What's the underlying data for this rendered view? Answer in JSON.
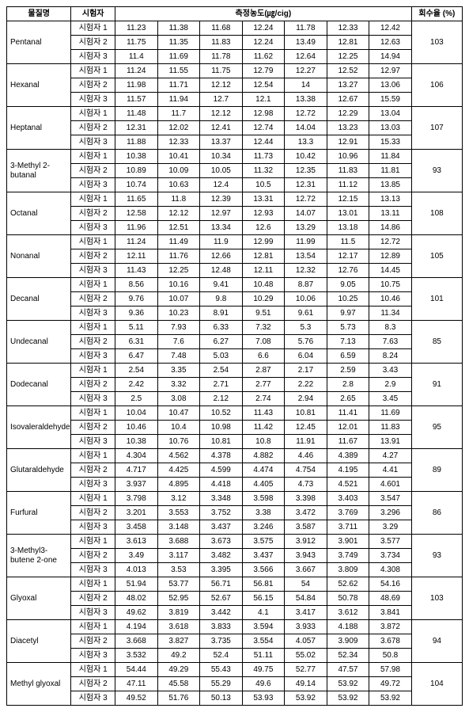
{
  "headers": {
    "name": "물질명",
    "tester": "시험자",
    "conc": "측정농도(㎍/cig)",
    "rate": "회수율 (%)"
  },
  "testerLabels": [
    "시험자 1",
    "시험자 2",
    "시험자 3"
  ],
  "substances": [
    {
      "name": "Pentanal",
      "rate": "103",
      "rows": [
        [
          "11.23",
          "11.38",
          "11.68",
          "12.24",
          "11.78",
          "12.33",
          "12.42"
        ],
        [
          "11.75",
          "11.35",
          "11.83",
          "12.24",
          "13.49",
          "12.81",
          "12.63"
        ],
        [
          "11.4",
          "11.69",
          "11.78",
          "11.62",
          "12.64",
          "12.25",
          "14.94"
        ]
      ]
    },
    {
      "name": "Hexanal",
      "rate": "106",
      "rows": [
        [
          "11.24",
          "11.55",
          "11.75",
          "12.79",
          "12.27",
          "12.52",
          "12.97"
        ],
        [
          "11.98",
          "11.71",
          "12.12",
          "12.54",
          "14",
          "13.27",
          "13.06"
        ],
        [
          "11.57",
          "11.94",
          "12.7",
          "12.1",
          "13.38",
          "12.67",
          "15.59"
        ]
      ]
    },
    {
      "name": "Heptanal",
      "rate": "107",
      "rows": [
        [
          "11.48",
          "11.7",
          "12.12",
          "12.98",
          "12.72",
          "12.29",
          "13.04"
        ],
        [
          "12.31",
          "12.02",
          "12.41",
          "12.74",
          "14.04",
          "13.23",
          "13.03"
        ],
        [
          "11.88",
          "12.33",
          "13.37",
          "12.44",
          "13.3",
          "12.91",
          "15.33"
        ]
      ]
    },
    {
      "name": "3-Methyl 2-butanal",
      "rate": "93",
      "rows": [
        [
          "10.38",
          "10.41",
          "10.34",
          "11.73",
          "10.42",
          "10.96",
          "11.84"
        ],
        [
          "10.89",
          "10.09",
          "10.05",
          "11.32",
          "12.35",
          "11.83",
          "11.81"
        ],
        [
          "10.74",
          "10.63",
          "12.4",
          "10.5",
          "12.31",
          "11.12",
          "13.85"
        ]
      ]
    },
    {
      "name": "Octanal",
      "rate": "108",
      "rows": [
        [
          "11.65",
          "11.8",
          "12.39",
          "13.31",
          "12.72",
          "12.15",
          "13.13"
        ],
        [
          "12.58",
          "12.12",
          "12.97",
          "12.93",
          "14.07",
          "13.01",
          "13.11"
        ],
        [
          "11.96",
          "12.51",
          "13.34",
          "12.6",
          "13.29",
          "13.18",
          "14.86"
        ]
      ]
    },
    {
      "name": "Nonanal",
      "rate": "105",
      "rows": [
        [
          "11.24",
          "11.49",
          "11.9",
          "12.99",
          "11.99",
          "11.5",
          "12.72"
        ],
        [
          "12.11",
          "11.76",
          "12.66",
          "12.81",
          "13.54",
          "12.17",
          "12.89"
        ],
        [
          "11.43",
          "12.25",
          "12.48",
          "12.11",
          "12.32",
          "12.76",
          "14.45"
        ]
      ]
    },
    {
      "name": "Decanal",
      "rate": "101",
      "rows": [
        [
          "8.56",
          "10.16",
          "9.41",
          "10.48",
          "8.87",
          "9.05",
          "10.75"
        ],
        [
          "9.76",
          "10.07",
          "9.8",
          "10.29",
          "10.06",
          "10.25",
          "10.46"
        ],
        [
          "9.36",
          "10.23",
          "8.91",
          "9.51",
          "9.61",
          "9.97",
          "11.34"
        ]
      ]
    },
    {
      "name": "Undecanal",
      "rate": "85",
      "rows": [
        [
          "5.11",
          "7.93",
          "6.33",
          "7.32",
          "5.3",
          "5.73",
          "8.3"
        ],
        [
          "6.31",
          "7.6",
          "6.27",
          "7.08",
          "5.76",
          "7.13",
          "7.63"
        ],
        [
          "6.47",
          "7.48",
          "5.03",
          "6.6",
          "6.04",
          "6.59",
          "8.24"
        ]
      ]
    },
    {
      "name": "Dodecanal",
      "rate": "91",
      "rows": [
        [
          "2.54",
          "3.35",
          "2.54",
          "2.87",
          "2.17",
          "2.59",
          "3.43"
        ],
        [
          "2.42",
          "3.32",
          "2.71",
          "2.77",
          "2.22",
          "2.8",
          "2.9"
        ],
        [
          "2.5",
          "3.08",
          "2.12",
          "2.74",
          "2.94",
          "2.65",
          "3.45"
        ]
      ]
    },
    {
      "name": "Isovaleraldehyde",
      "rate": "95",
      "rows": [
        [
          "10.04",
          "10.47",
          "10.52",
          "11.43",
          "10.81",
          "11.41",
          "11.69"
        ],
        [
          "10.46",
          "10.4",
          "10.98",
          "11.42",
          "12.45",
          "12.01",
          "11.83"
        ],
        [
          "10.38",
          "10.76",
          "10.81",
          "10.8",
          "11.91",
          "11.67",
          "13.91"
        ]
      ]
    },
    {
      "name": "Glutaraldehyde",
      "rate": "89",
      "rows": [
        [
          "4.304",
          "4.562",
          "4.378",
          "4.882",
          "4.46",
          "4.389",
          "4.27"
        ],
        [
          "4.717",
          "4.425",
          "4.599",
          "4.474",
          "4.754",
          "4.195",
          "4.41"
        ],
        [
          "3.937",
          "4.895",
          "4.418",
          "4.405",
          "4.73",
          "4.521",
          "4.601"
        ]
      ]
    },
    {
      "name": "Furfural",
      "rate": "86",
      "rows": [
        [
          "3.798",
          "3.12",
          "3.348",
          "3.598",
          "3.398",
          "3.403",
          "3.547"
        ],
        [
          "3.201",
          "3.553",
          "3.752",
          "3.38",
          "3.472",
          "3.769",
          "3.296"
        ],
        [
          "3.458",
          "3.148",
          "3.437",
          "3.246",
          "3.587",
          "3.711",
          "3.29"
        ]
      ]
    },
    {
      "name": "3-Methyl3-butene 2-one",
      "rate": "93",
      "rows": [
        [
          "3.613",
          "3.688",
          "3.673",
          "3.575",
          "3.912",
          "3.901",
          "3.577"
        ],
        [
          "3.49",
          "3.117",
          "3.482",
          "3.437",
          "3.943",
          "3.749",
          "3.734"
        ],
        [
          "4.013",
          "3.53",
          "3.395",
          "3.566",
          "3.667",
          "3.809",
          "4.308"
        ]
      ]
    },
    {
      "name": "Glyoxal",
      "rate": "103",
      "rows": [
        [
          "51.94",
          "53.77",
          "56.71",
          "56.81",
          "54",
          "52.62",
          "54.16"
        ],
        [
          "48.02",
          "52.95",
          "52.67",
          "56.15",
          "54.84",
          "50.78",
          "48.69"
        ],
        [
          "49.62",
          "3.819",
          "3.442",
          "4.1",
          "3.417",
          "3.612",
          "3.841"
        ]
      ]
    },
    {
      "name": "Diacetyl",
      "rate": "94",
      "rows": [
        [
          "4.194",
          "3.618",
          "3.833",
          "3.594",
          "3.933",
          "4.188",
          "3.872"
        ],
        [
          "3.668",
          "3.827",
          "3.735",
          "3.554",
          "4.057",
          "3.909",
          "3.678"
        ],
        [
          "3.532",
          "49.2",
          "52.4",
          "51.11",
          "55.02",
          "52.34",
          "50.8"
        ]
      ]
    },
    {
      "name": "Methyl glyoxal",
      "rate": "104",
      "rows": [
        [
          "54.44",
          "49.29",
          "55.43",
          "49.75",
          "52.77",
          "47.57",
          "57.98"
        ],
        [
          "47.11",
          "45.58",
          "55.29",
          "49.6",
          "49.14",
          "53.92",
          "49.72"
        ],
        [
          "49.52",
          "51.76",
          "50.13",
          "53.93",
          "53.92",
          "53.92",
          "53.92"
        ]
      ]
    }
  ]
}
